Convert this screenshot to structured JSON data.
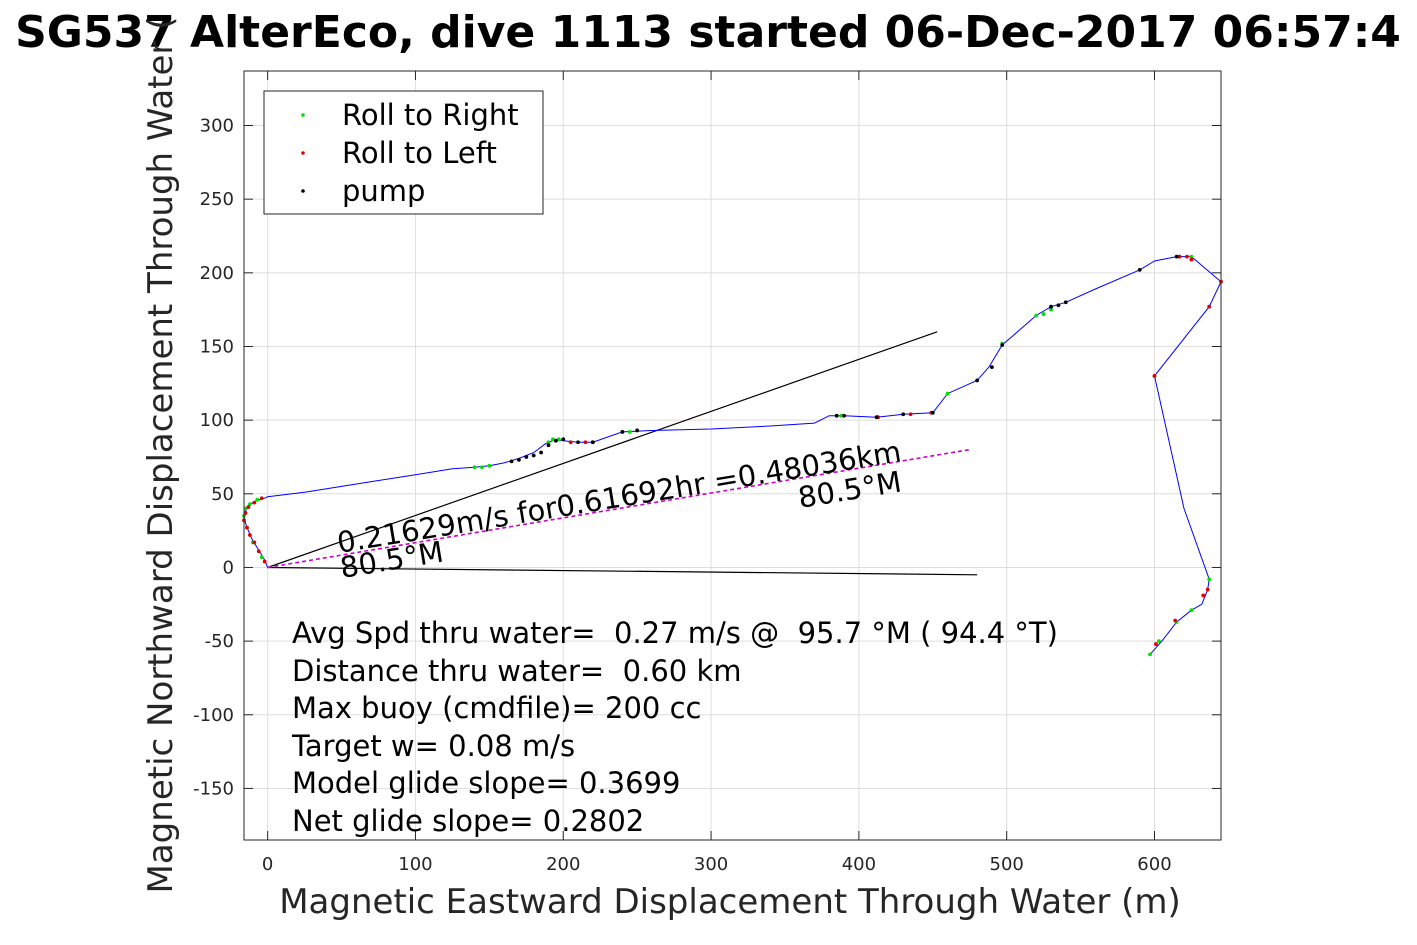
{
  "chart_data": {
    "type": "line",
    "title": "SG537 AlterEco, dive 1113 started 06-Dec-2017 06:57:4",
    "xlabel": "Magnetic Eastward Displacement Through Water (m)",
    "ylabel": "Magnetic Northward Displacement Through Water (",
    "xlim": [
      -16,
      645
    ],
    "ylim": [
      -185,
      337
    ],
    "xticks": [
      0,
      100,
      200,
      300,
      400,
      500,
      600
    ],
    "yticks": [
      -150,
      -100,
      -50,
      0,
      50,
      100,
      150,
      200,
      250,
      300
    ],
    "xtick_labels": [
      "0",
      "100",
      "200",
      "300",
      "400",
      "500",
      "600"
    ],
    "ytick_labels": [
      "-150",
      "-100",
      "-50",
      "0",
      "50",
      "100",
      "150",
      "200",
      "250",
      "300"
    ],
    "grid": true,
    "legend_position": "top-left",
    "legend": [
      {
        "label": "Roll to Right",
        "color": "#00e000"
      },
      {
        "label": "Roll to Left",
        "color": "#e00000"
      },
      {
        "label": "pump",
        "color": "#000000"
      }
    ],
    "colors": {
      "track": "#0000ff",
      "net_line": "#cc00cc",
      "bounds": "#000000"
    },
    "track": {
      "x": [
        0,
        -2,
        -5,
        -8,
        -11,
        -13,
        -15,
        -16,
        -15,
        -13,
        -10,
        -6,
        -2,
        0,
        25,
        50,
        75,
        100,
        125,
        140,
        150,
        160,
        170,
        180,
        188,
        195,
        200,
        210,
        220,
        240,
        260,
        300,
        340,
        370,
        380,
        390,
        412,
        430,
        450,
        460,
        480,
        488,
        497,
        505,
        520,
        530,
        540,
        560,
        590,
        600,
        615,
        625,
        645,
        637,
        600,
        620,
        637,
        636,
        632,
        625,
        615,
        605,
        597
      ],
      "y": [
        0,
        5,
        10,
        15,
        20,
        25,
        30,
        35,
        38,
        42,
        44,
        46,
        47,
        48,
        51,
        55,
        59,
        63,
        67,
        68,
        69,
        71,
        74,
        78,
        84,
        87,
        86,
        85,
        85,
        92,
        93,
        94,
        96,
        98,
        103,
        103,
        102,
        104,
        105,
        118,
        127,
        136,
        151,
        158,
        171,
        177,
        180,
        189,
        202,
        208,
        211,
        211,
        194,
        177,
        130,
        40,
        -8,
        -15,
        -25,
        -29,
        -37,
        -50,
        -59
      ]
    },
    "pump_points": {
      "x": [
        165,
        170,
        175,
        180,
        185,
        190,
        195,
        200,
        210,
        220,
        240,
        250,
        385,
        390,
        412,
        430,
        450,
        480,
        490,
        497,
        530,
        535,
        540,
        590,
        615
      ],
      "y": [
        72,
        73,
        75,
        76,
        78,
        83,
        86,
        87,
        85,
        85,
        92,
        93,
        103,
        103,
        102,
        104,
        105,
        127,
        136,
        151,
        177,
        178,
        180,
        202,
        211
      ]
    },
    "roll_right_points": {
      "x": [
        -4,
        -10,
        -14,
        -16,
        -15,
        -12,
        -7,
        140,
        145,
        150,
        190,
        193,
        197,
        240,
        245,
        385,
        388,
        450,
        460,
        497,
        520,
        525,
        530,
        600,
        617,
        625,
        637,
        597,
        603,
        615,
        625
      ],
      "y": [
        7,
        17,
        27,
        35,
        40,
        43,
        46,
        68,
        68,
        69,
        85,
        87,
        87,
        92,
        92,
        103,
        103,
        105,
        118,
        152,
        171,
        172,
        175,
        130,
        211,
        211,
        -8,
        -59,
        -50,
        -37,
        -29
      ]
    },
    "roll_left_points": {
      "x": [
        -2,
        -6,
        -9,
        -12,
        -14,
        -16,
        -15,
        -13,
        -9,
        -4,
        205,
        215,
        220,
        413,
        435,
        449,
        600,
        617,
        622,
        625,
        637,
        645,
        636,
        633,
        614,
        601
      ],
      "y": [
        4,
        11,
        17,
        22,
        27,
        32,
        37,
        41,
        44,
        47,
        85,
        85,
        85,
        102,
        104,
        105,
        130,
        211,
        211,
        209,
        177,
        194,
        -15,
        -19,
        -36,
        -52
      ]
    },
    "bound_lines": [
      {
        "x": [
          0,
          453
        ],
        "y": [
          0,
          160
        ]
      },
      {
        "x": [
          0,
          480
        ],
        "y": [
          0,
          -5
        ]
      }
    ],
    "net_line": {
      "x": [
        0,
        475
      ],
      "y": [
        0,
        80
      ]
    },
    "annotations": {
      "speed_text": "0.21629m/s for0.61692hr =0.48036km",
      "heading_end": "80.5°M",
      "heading_start": "80.5°M"
    },
    "stats": [
      "Avg Spd thru water=  0.27 m/s @  95.7 °M ( 94.4 °T)",
      "Distance thru water=  0.60 km",
      "Max buoy (cmdfile)= 200 cc",
      "Target w= 0.08 m/s",
      "Model glide slope= 0.3699",
      "Net glide slope= 0.2802"
    ]
  }
}
